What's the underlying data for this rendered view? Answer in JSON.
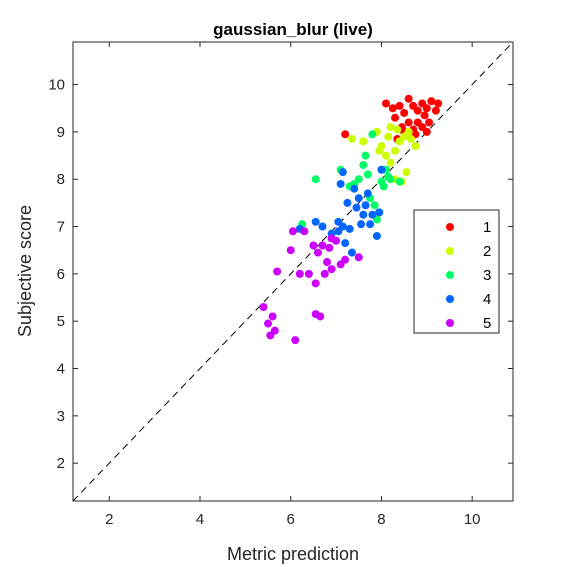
{
  "chart_data": {
    "type": "scatter",
    "title": "gaussian_blur (live)",
    "xlabel": "Metric prediction",
    "ylabel": "Subjective score",
    "xlim": [
      1.2,
      10.9
    ],
    "ylim": [
      1.2,
      10.9
    ],
    "xticks": [
      2,
      4,
      6,
      8,
      10
    ],
    "yticks": [
      2,
      3,
      4,
      5,
      6,
      7,
      8,
      9,
      10
    ],
    "grid": false,
    "legend_position": "right",
    "reference_line": "y = x (dashed)",
    "series": [
      {
        "name": "1",
        "color": "#ff0000",
        "points": [
          [
            7.2,
            8.95
          ],
          [
            8.1,
            9.6
          ],
          [
            8.25,
            9.5
          ],
          [
            8.3,
            9.3
          ],
          [
            8.4,
            9.55
          ],
          [
            8.5,
            9.4
          ],
          [
            8.6,
            9.7
          ],
          [
            8.7,
            9.55
          ],
          [
            8.8,
            9.45
          ],
          [
            8.9,
            9.6
          ],
          [
            9.0,
            9.5
          ],
          [
            9.1,
            9.65
          ],
          [
            9.2,
            9.45
          ],
          [
            9.25,
            9.6
          ],
          [
            8.6,
            9.2
          ],
          [
            8.7,
            9.05
          ],
          [
            8.8,
            9.2
          ],
          [
            8.9,
            9.1
          ],
          [
            9.0,
            9.0
          ],
          [
            9.05,
            9.2
          ],
          [
            8.5,
            9.0
          ],
          [
            8.75,
            8.95
          ],
          [
            8.45,
            9.1
          ],
          [
            8.95,
            9.35
          ],
          [
            8.35,
            8.85
          ]
        ]
      },
      {
        "name": "2",
        "color": "#ccff00",
        "points": [
          [
            7.35,
            8.85
          ],
          [
            7.6,
            8.8
          ],
          [
            7.9,
            9.0
          ],
          [
            8.0,
            8.7
          ],
          [
            8.1,
            8.5
          ],
          [
            8.15,
            8.9
          ],
          [
            8.2,
            9.1
          ],
          [
            8.3,
            8.6
          ],
          [
            8.4,
            8.8
          ],
          [
            8.5,
            8.9
          ],
          [
            8.6,
            9.0
          ],
          [
            8.75,
            8.7
          ],
          [
            8.05,
            8.2
          ],
          [
            8.3,
            8.0
          ],
          [
            8.45,
            7.95
          ],
          [
            8.55,
            8.15
          ],
          [
            8.2,
            8.35
          ],
          [
            8.65,
            8.85
          ],
          [
            8.35,
            9.05
          ],
          [
            7.95,
            8.6
          ]
        ]
      },
      {
        "name": "3",
        "color": "#00ff66",
        "points": [
          [
            6.55,
            8.0
          ],
          [
            6.25,
            7.05
          ],
          [
            7.1,
            8.2
          ],
          [
            7.3,
            7.85
          ],
          [
            7.5,
            8.0
          ],
          [
            7.6,
            8.3
          ],
          [
            7.7,
            8.1
          ],
          [
            7.75,
            7.6
          ],
          [
            7.8,
            8.95
          ],
          [
            7.85,
            7.45
          ],
          [
            8.0,
            7.95
          ],
          [
            8.05,
            7.85
          ],
          [
            8.1,
            8.2
          ],
          [
            8.2,
            8.0
          ],
          [
            8.4,
            7.95
          ],
          [
            7.9,
            7.15
          ],
          [
            7.95,
            7.3
          ],
          [
            7.65,
            8.5
          ],
          [
            7.4,
            7.9
          ],
          [
            8.15,
            8.05
          ]
        ]
      },
      {
        "name": "4",
        "color": "#0066ff",
        "points": [
          [
            6.2,
            6.95
          ],
          [
            6.55,
            7.1
          ],
          [
            6.9,
            6.85
          ],
          [
            7.05,
            7.1
          ],
          [
            7.1,
            7.9
          ],
          [
            7.15,
            7.0
          ],
          [
            7.2,
            6.65
          ],
          [
            7.25,
            7.5
          ],
          [
            7.3,
            6.95
          ],
          [
            7.4,
            7.8
          ],
          [
            7.45,
            7.4
          ],
          [
            7.5,
            7.6
          ],
          [
            7.6,
            7.25
          ],
          [
            7.65,
            7.45
          ],
          [
            7.7,
            7.7
          ],
          [
            7.75,
            7.05
          ],
          [
            7.8,
            7.25
          ],
          [
            7.9,
            6.8
          ],
          [
            7.95,
            7.3
          ],
          [
            8.0,
            8.2
          ],
          [
            7.35,
            6.45
          ],
          [
            7.55,
            7.05
          ],
          [
            7.05,
            6.9
          ],
          [
            6.7,
            7.0
          ],
          [
            7.15,
            8.15
          ]
        ]
      },
      {
        "name": "5",
        "color": "#cc00ff",
        "points": [
          [
            5.4,
            5.3
          ],
          [
            5.5,
            4.95
          ],
          [
            5.55,
            4.7
          ],
          [
            5.6,
            5.1
          ],
          [
            5.65,
            4.8
          ],
          [
            5.7,
            6.05
          ],
          [
            6.05,
            6.9
          ],
          [
            6.1,
            4.6
          ],
          [
            6.2,
            6.0
          ],
          [
            6.3,
            6.9
          ],
          [
            6.4,
            6.0
          ],
          [
            6.5,
            6.6
          ],
          [
            6.55,
            5.8
          ],
          [
            6.6,
            6.45
          ],
          [
            6.65,
            5.1
          ],
          [
            6.7,
            6.6
          ],
          [
            6.75,
            6.0
          ],
          [
            6.8,
            6.25
          ],
          [
            6.85,
            6.55
          ],
          [
            6.9,
            6.1
          ],
          [
            7.0,
            6.7
          ],
          [
            7.1,
            6.2
          ],
          [
            7.2,
            6.3
          ],
          [
            7.5,
            6.35
          ],
          [
            6.55,
            5.15
          ],
          [
            6.9,
            6.75
          ],
          [
            6.0,
            6.5
          ]
        ]
      }
    ]
  }
}
